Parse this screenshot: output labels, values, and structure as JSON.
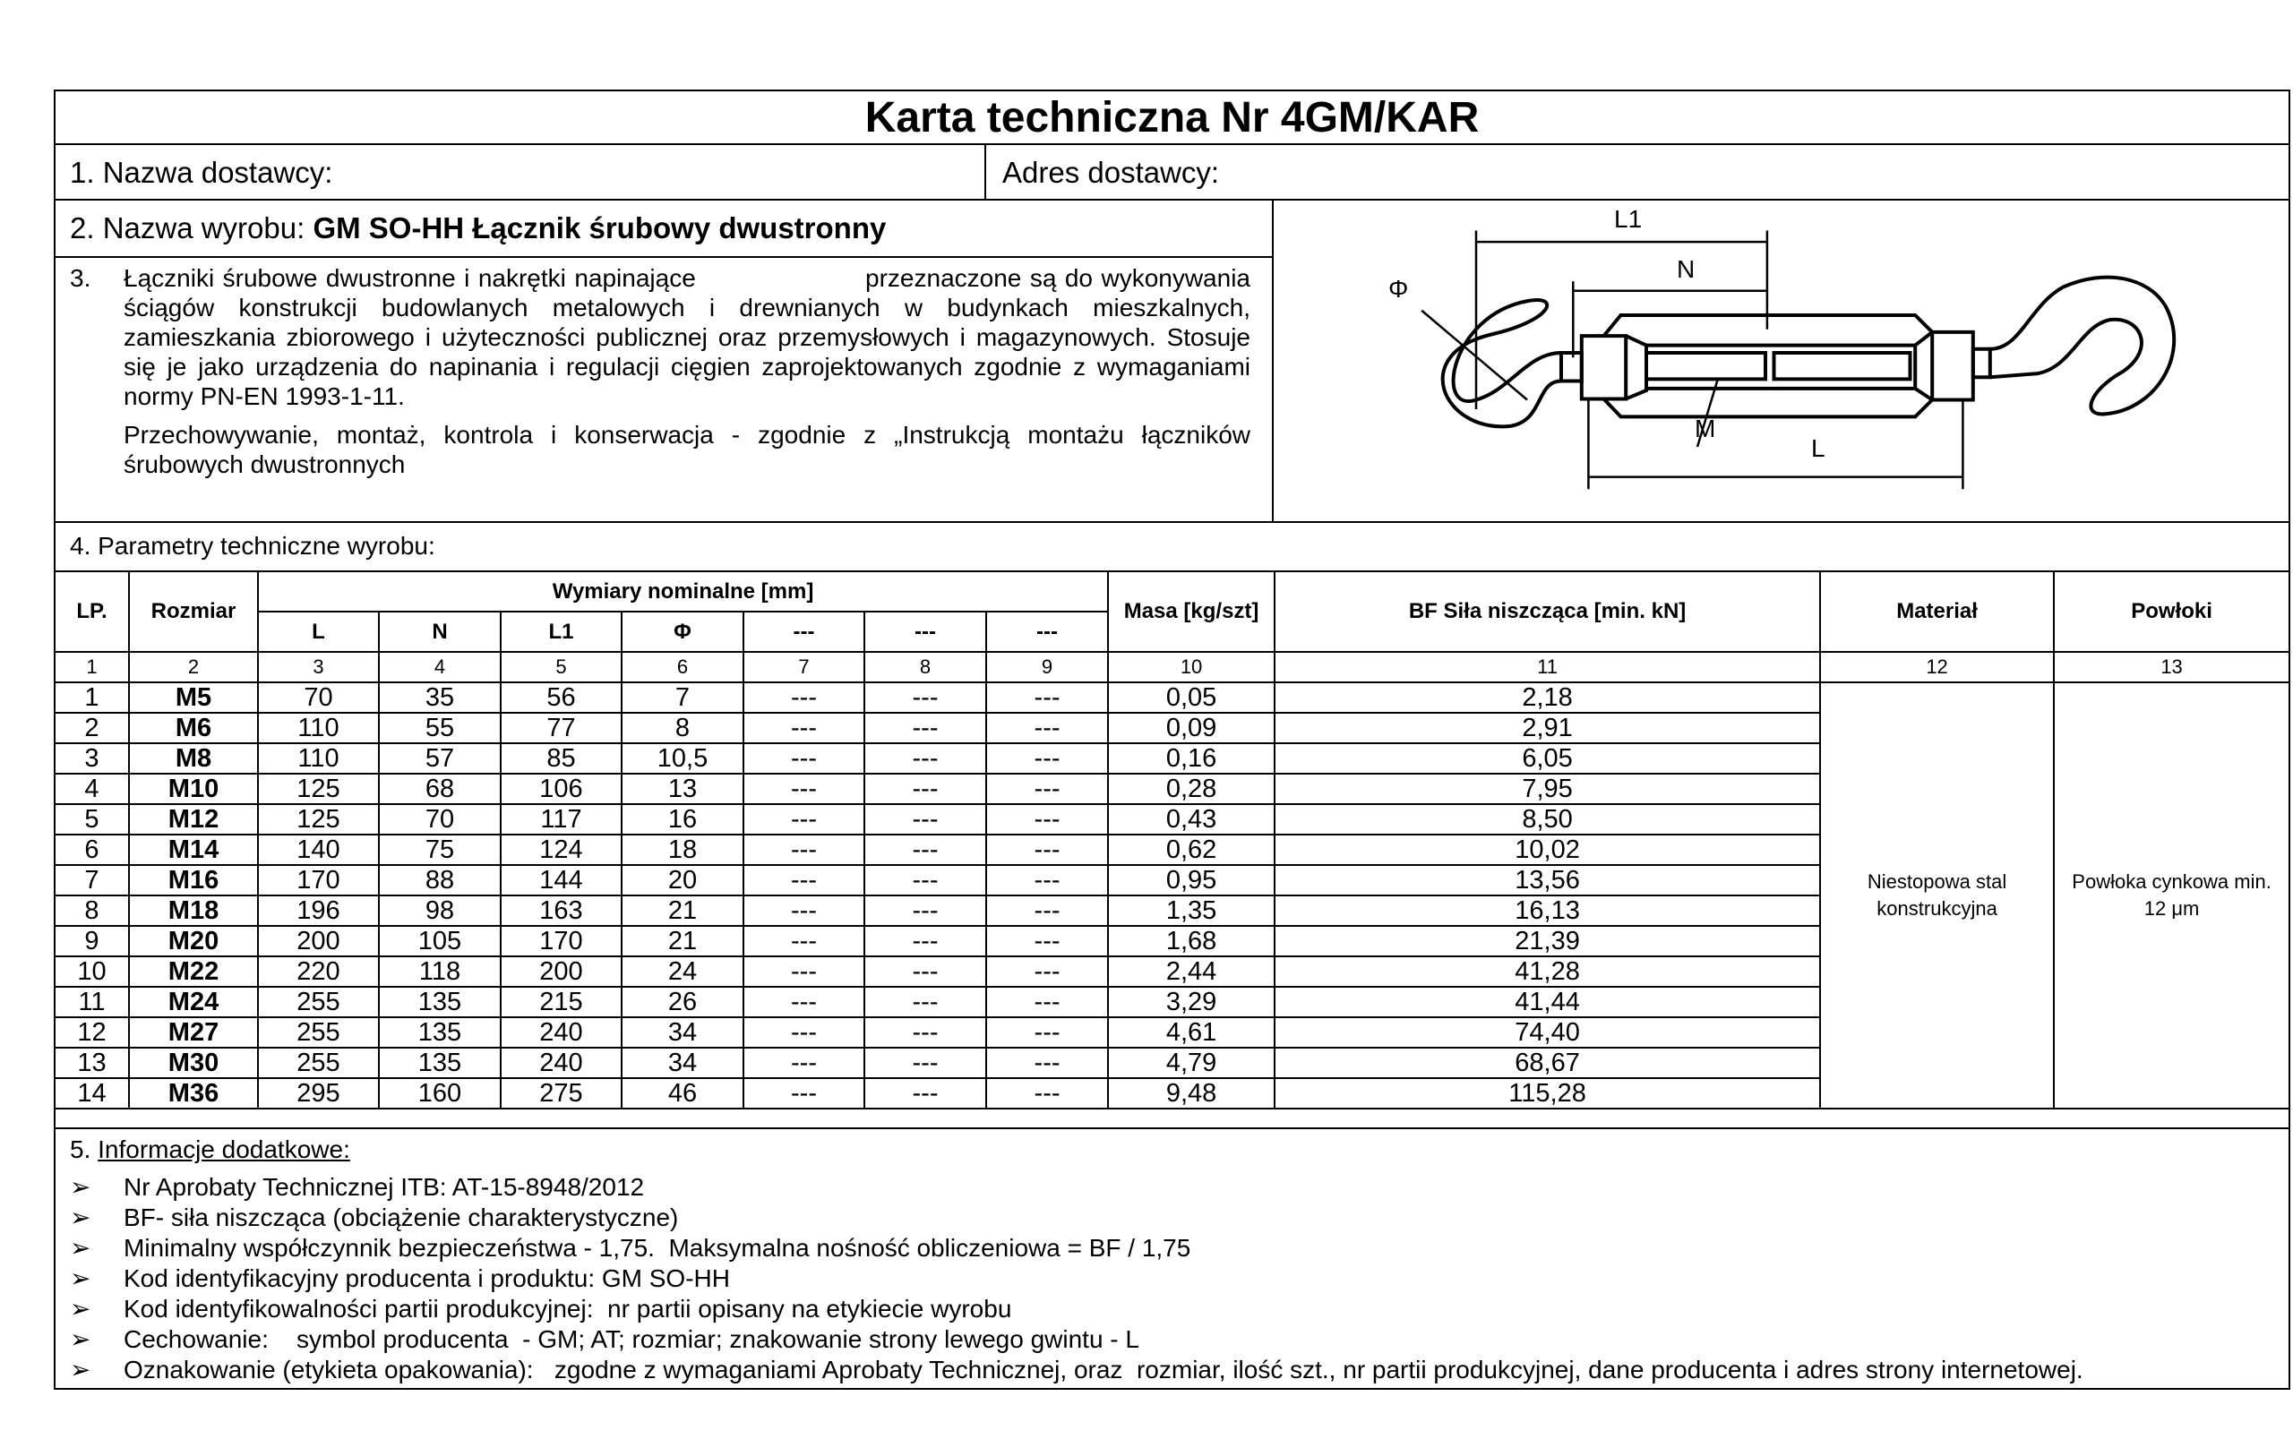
{
  "title": "Karta techniczna  Nr 4GM/KAR",
  "supplier_name_label": "1. Nazwa dostawcy:",
  "supplier_address_label": "Adres dostawcy:",
  "product": {
    "label": "2. Nazwa wyrobu: ",
    "name": "GM SO-HH Łącznik śrubowy dwustronny"
  },
  "section3": {
    "num": "3.",
    "p1": "Łączniki śrubowe dwustronne i nakrętki napinające                    przeznaczone są do wykonywania ściągów konstrukcji budowlanych metalowych i drewnianych w budynkach mieszkalnych, zamieszkania zbiorowego i użyteczności publicznej oraz przemysłowych i magazynowych. Stosuje się je jako urządzenia do napinania i regulacji cięgien zaprojektowanych zgodnie z wymaganiami normy PN-EN 1993-1-11.",
    "p2": "Przechowywanie, montaż, kontrola i konserwacja - zgodnie z „Instrukcją montażu łączników śrubowych dwustronnych"
  },
  "diagram_labels": {
    "L1": "L1",
    "N": "N",
    "phi": "Φ",
    "M": "M",
    "L": "L"
  },
  "section4_label": "4. Parametry techniczne wyrobu:",
  "table": {
    "headers": {
      "lp": "LP.",
      "size": "Rozmiar",
      "dims": "Wymiary nominalne [mm]",
      "L": "L",
      "N": "N",
      "L1": "L1",
      "phi": "Φ",
      "c7": "---",
      "c8": "---",
      "c9": "---",
      "mass": "Masa [kg/szt]",
      "bf": "BF Siła niszcząca [min. kN]",
      "material": "Materiał",
      "coating": "Powłoki"
    },
    "col_numbers": [
      "1",
      "2",
      "3",
      "4",
      "5",
      "6",
      "7",
      "8",
      "9",
      "10",
      "11",
      "12",
      "13"
    ],
    "rows": [
      [
        "1",
        "M5",
        "70",
        "35",
        "56",
        "7",
        "---",
        "---",
        "---",
        "0,05",
        "2,18"
      ],
      [
        "2",
        "M6",
        "110",
        "55",
        "77",
        "8",
        "---",
        "---",
        "---",
        "0,09",
        "2,91"
      ],
      [
        "3",
        "M8",
        "110",
        "57",
        "85",
        "10,5",
        "---",
        "---",
        "---",
        "0,16",
        "6,05"
      ],
      [
        "4",
        "M10",
        "125",
        "68",
        "106",
        "13",
        "---",
        "---",
        "---",
        "0,28",
        "7,95"
      ],
      [
        "5",
        "M12",
        "125",
        "70",
        "117",
        "16",
        "---",
        "---",
        "---",
        "0,43",
        "8,50"
      ],
      [
        "6",
        "M14",
        "140",
        "75",
        "124",
        "18",
        "---",
        "---",
        "---",
        "0,62",
        "10,02"
      ],
      [
        "7",
        "M16",
        "170",
        "88",
        "144",
        "20",
        "---",
        "---",
        "---",
        "0,95",
        "13,56"
      ],
      [
        "8",
        "M18",
        "196",
        "98",
        "163",
        "21",
        "---",
        "---",
        "---",
        "1,35",
        "16,13"
      ],
      [
        "9",
        "M20",
        "200",
        "105",
        "170",
        "21",
        "---",
        "---",
        "---",
        "1,68",
        "21,39"
      ],
      [
        "10",
        "M22",
        "220",
        "118",
        "200",
        "24",
        "---",
        "---",
        "---",
        "2,44",
        "41,28"
      ],
      [
        "11",
        "M24",
        "255",
        "135",
        "215",
        "26",
        "---",
        "---",
        "---",
        "3,29",
        "41,44"
      ],
      [
        "12",
        "M27",
        "255",
        "135",
        "240",
        "34",
        "---",
        "---",
        "---",
        "4,61",
        "74,40"
      ],
      [
        "13",
        "M30",
        "255",
        "135",
        "240",
        "34",
        "---",
        "---",
        "---",
        "4,79",
        "68,67"
      ],
      [
        "14",
        "M36",
        "295",
        "160",
        "275",
        "46",
        "---",
        "---",
        "---",
        "9,48",
        "115,28"
      ]
    ],
    "material": "Niestopowa stal konstrukcyjna",
    "coating": "Powłoka cynkowa min. 12  μm"
  },
  "section5": {
    "num": "5. ",
    "label": "Informacje dodatkowe:",
    "bullet": "➢",
    "items": [
      "Nr Aprobaty Technicznej ITB: AT-15-8948/2012",
      "BF- siła niszcząca (obciążenie charakterystyczne)",
      "Minimalny współczynnik bezpieczeństwa - 1,75.  Maksymalna nośność obliczeniowa = BF / 1,75",
      "Kod identyfikacyjny producenta i produktu: GM SO-HH",
      "Kod identyfikowalności partii produkcyjnej:  nr partii opisany na etykiecie wyrobu",
      "Cechowanie:    symbol producenta  - GM; AT; rozmiar; znakowanie strony lewego gwintu - L",
      "Oznakowanie (etykieta opakowania):   zgodne z wymaganiami Aprobaty Technicznej, oraz  rozmiar, ilość szt., nr partii produkcyjnej, dane producenta i adres strony internetowej."
    ]
  }
}
